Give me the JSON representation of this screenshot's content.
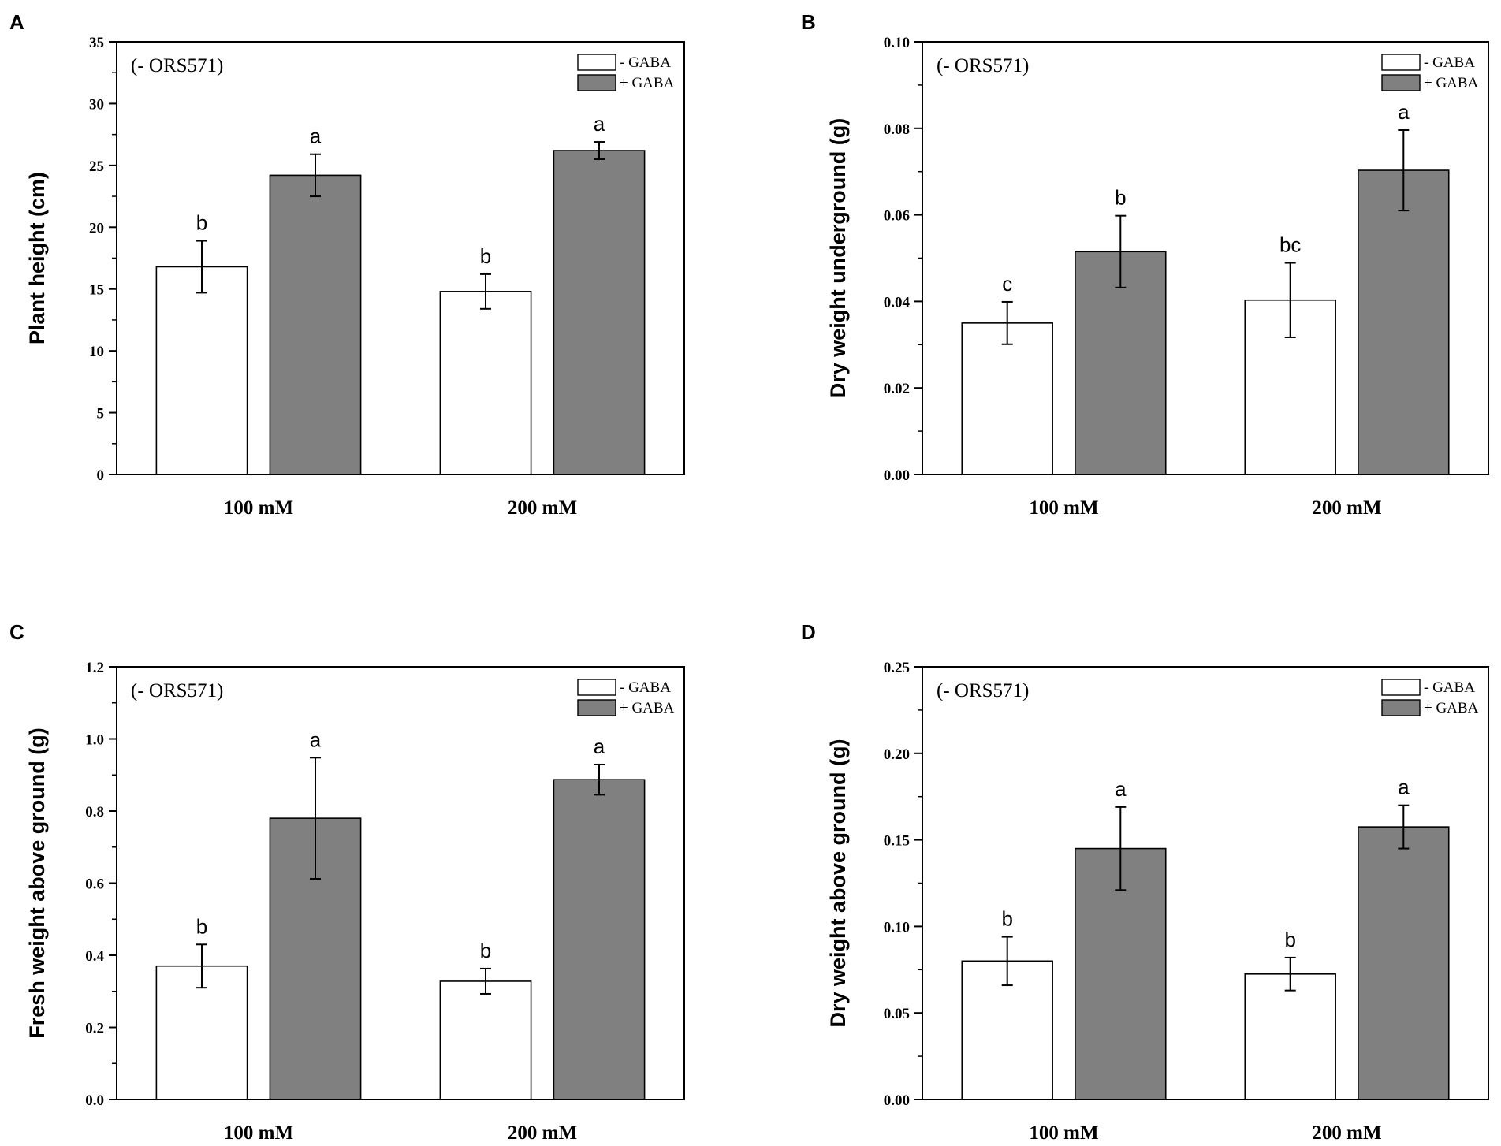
{
  "figure": {
    "colors": {
      "minus_gaba": "#ffffff",
      "plus_gaba": "#808080",
      "axis": "#000000"
    }
  },
  "chart_data": [
    {
      "panel": "A",
      "type": "bar",
      "annotation": "(- ORS571)",
      "ylabel": "Plant height (cm)",
      "xlabel": "",
      "categories": [
        "100 mM",
        "200 mM"
      ],
      "ylim": [
        0,
        35
      ],
      "yticks": [
        0,
        5,
        10,
        15,
        20,
        25,
        30,
        35
      ],
      "ytick_labels": [
        "0",
        "5",
        "10",
        "15",
        "20",
        "25",
        "30",
        "35"
      ],
      "legend": {
        "placement": "top-right",
        "entries": [
          "- GABA",
          "+ GABA"
        ]
      },
      "series": [
        {
          "name": "- GABA",
          "values": [
            16.8,
            14.8
          ],
          "errors": [
            2.1,
            1.4
          ],
          "labels": [
            "b",
            "b"
          ]
        },
        {
          "name": "+ GABA",
          "values": [
            24.2,
            26.2
          ],
          "errors": [
            1.7,
            0.7
          ],
          "labels": [
            "a",
            "a"
          ]
        }
      ]
    },
    {
      "panel": "B",
      "type": "bar",
      "annotation": "(- ORS571)",
      "ylabel": "Dry weight underground (g)",
      "xlabel": "",
      "categories": [
        "100 mM",
        "200 mM"
      ],
      "ylim": [
        0,
        0.1
      ],
      "yticks": [
        0,
        0.02,
        0.04,
        0.06,
        0.08,
        0.1
      ],
      "ytick_labels": [
        "0.00",
        "0.02",
        "0.04",
        "0.06",
        "0.08",
        "0.10"
      ],
      "legend": {
        "placement": "top-right",
        "entries": [
          "- GABA",
          "+ GABA"
        ]
      },
      "series": [
        {
          "name": "- GABA",
          "values": [
            0.035,
            0.0403
          ],
          "errors": [
            0.0049,
            0.0086
          ],
          "labels": [
            "c",
            "bc"
          ]
        },
        {
          "name": "+ GABA",
          "values": [
            0.0515,
            0.0703
          ],
          "errors": [
            0.0083,
            0.0093
          ],
          "labels": [
            "b",
            "a"
          ]
        }
      ]
    },
    {
      "panel": "C",
      "type": "bar",
      "annotation": "(- ORS571)",
      "ylabel": "Fresh weight above ground (g)",
      "xlabel": "",
      "categories": [
        "100 mM",
        "200 mM"
      ],
      "ylim": [
        0,
        1.2
      ],
      "yticks": [
        0,
        0.2,
        0.4,
        0.6,
        0.8,
        1.0,
        1.2
      ],
      "ytick_labels": [
        "0.0",
        "0.2",
        "0.4",
        "0.6",
        "0.8",
        "1.0",
        "1.2"
      ],
      "legend": {
        "placement": "top-right",
        "entries": [
          "- GABA",
          "+ GABA"
        ]
      },
      "series": [
        {
          "name": "- GABA",
          "values": [
            0.37,
            0.328
          ],
          "errors": [
            0.06,
            0.035
          ],
          "labels": [
            "b",
            "b"
          ]
        },
        {
          "name": "+ GABA",
          "values": [
            0.78,
            0.887
          ],
          "errors": [
            0.168,
            0.042
          ],
          "labels": [
            "a",
            "a"
          ]
        }
      ]
    },
    {
      "panel": "D",
      "type": "bar",
      "annotation": "(- ORS571)",
      "ylabel": "Dry weight above ground (g)",
      "xlabel": "",
      "categories": [
        "100 mM",
        "200 mM"
      ],
      "ylim": [
        0,
        0.25
      ],
      "yticks": [
        0,
        0.05,
        0.1,
        0.15,
        0.2,
        0.25
      ],
      "ytick_labels": [
        "0.00",
        "0.05",
        "0.10",
        "0.15",
        "0.20",
        "0.25"
      ],
      "legend": {
        "placement": "top-right",
        "entries": [
          "- GABA",
          "+ GABA"
        ]
      },
      "series": [
        {
          "name": "- GABA",
          "values": [
            0.08,
            0.0725
          ],
          "errors": [
            0.014,
            0.0095
          ],
          "labels": [
            "b",
            "b"
          ]
        },
        {
          "name": "+ GABA",
          "values": [
            0.145,
            0.1575
          ],
          "errors": [
            0.024,
            0.0125
          ],
          "labels": [
            "a",
            "a"
          ]
        }
      ]
    }
  ]
}
